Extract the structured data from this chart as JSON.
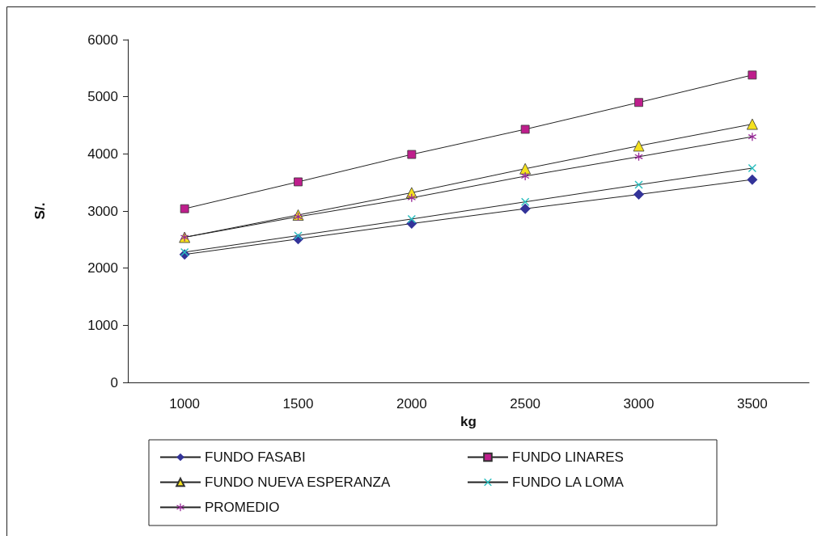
{
  "chart_data": {
    "type": "line",
    "xlabel": "kg",
    "ylabel": "S/.",
    "categories": [
      "1000",
      "1500",
      "2000",
      "2500",
      "3000",
      "3500"
    ],
    "series": [
      {
        "name": "FUNDO FASABI",
        "color": "#333399",
        "marker": "diamond",
        "values": [
          2240,
          2510,
          2780,
          3040,
          3290,
          3550
        ]
      },
      {
        "name": "FUNDO LINARES",
        "color": "#be1e8c",
        "marker": "square",
        "values": [
          3040,
          3510,
          3990,
          4430,
          4900,
          5380
        ]
      },
      {
        "name": "FUNDO NUEVA ESPERANZA",
        "color": "#f5e11e",
        "marker": "triangle",
        "values": [
          2540,
          2930,
          3320,
          3740,
          4140,
          4520
        ]
      },
      {
        "name": "FUNDO LA LOMA",
        "color": "#28bebe",
        "marker": "cross",
        "values": [
          2280,
          2570,
          2860,
          3160,
          3460,
          3750
        ]
      },
      {
        "name": "PROMEDIO",
        "color": "#962896",
        "marker": "star",
        "values": [
          2540,
          2900,
          3230,
          3610,
          3950,
          4300
        ]
      }
    ],
    "ylim": [
      0,
      6000
    ],
    "yticks": [
      0,
      1000,
      2000,
      3000,
      4000,
      5000,
      6000
    ],
    "grid": false,
    "legend": "bottom",
    "line_style": "solid"
  }
}
